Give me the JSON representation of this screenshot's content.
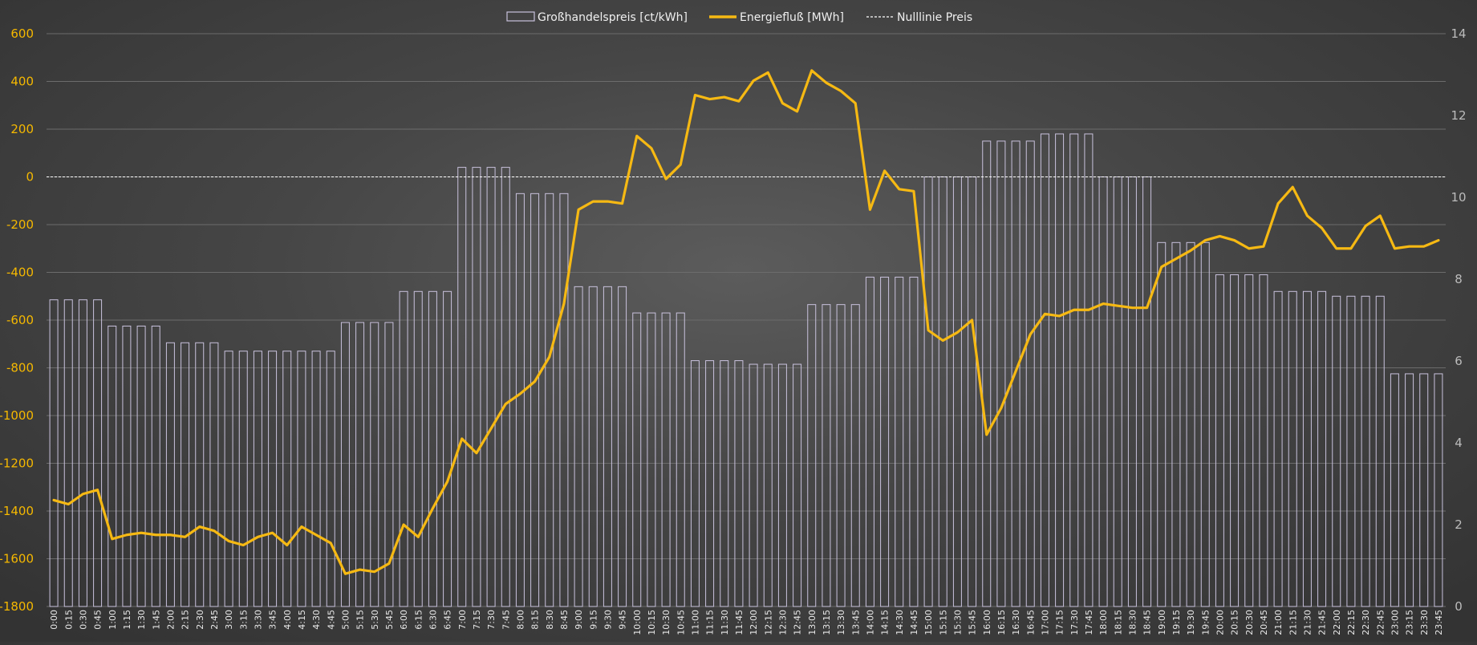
{
  "chart_data": {
    "type": "bar+line",
    "legend": {
      "position": "top-center",
      "items": [
        {
          "label": "Großhandelspreis [ct/kWh]",
          "kind": "bar"
        },
        {
          "label": "Energiefluß [MWh]",
          "kind": "line"
        },
        {
          "label": "Nulllinie Preis",
          "kind": "dashed"
        }
      ]
    },
    "categories": [
      "0:00",
      "0:15",
      "0:30",
      "0:45",
      "1:00",
      "1:15",
      "1:30",
      "1:45",
      "2:00",
      "2:15",
      "2:30",
      "2:45",
      "3:00",
      "3:15",
      "3:30",
      "3:45",
      "4:00",
      "4:15",
      "4:30",
      "4:45",
      "5:00",
      "5:15",
      "5:30",
      "5:45",
      "6:00",
      "6:15",
      "6:30",
      "6:45",
      "7:00",
      "7:15",
      "7:30",
      "7:45",
      "8:00",
      "8:15",
      "8:30",
      "8:45",
      "9:00",
      "9:15",
      "9:30",
      "9:45",
      "10:00",
      "10:15",
      "10:30",
      "10:45",
      "11:00",
      "11:15",
      "11:30",
      "11:45",
      "12:00",
      "12:15",
      "12:30",
      "12:45",
      "13:00",
      "13:15",
      "13:30",
      "13:45",
      "14:00",
      "14:15",
      "14:30",
      "14:45",
      "15:00",
      "15:15",
      "15:30",
      "15:45",
      "16:00",
      "16:15",
      "16:30",
      "16:45",
      "17:00",
      "17:15",
      "17:30",
      "17:45",
      "18:00",
      "18:15",
      "18:30",
      "18:45",
      "19:00",
      "19:15",
      "19:30",
      "19:45",
      "20:00",
      "20:15",
      "20:30",
      "20:45",
      "21:00",
      "21:15",
      "21:30",
      "21:45",
      "22:00",
      "22:15",
      "22:30",
      "22:45",
      "23:00",
      "23:15",
      "23:30",
      "23:45"
    ],
    "series": [
      {
        "name": "Großhandelspreis [ct/kWh]",
        "type": "bar",
        "axis": "left",
        "values": [
          -515,
          -515,
          -515,
          -515,
          -625,
          -625,
          -625,
          -625,
          -695,
          -695,
          -695,
          -695,
          -730,
          -730,
          -730,
          -730,
          -730,
          -730,
          -730,
          -730,
          -610,
          -610,
          -610,
          -610,
          -480,
          -480,
          -480,
          -480,
          40,
          40,
          40,
          40,
          -70,
          -70,
          -70,
          -70,
          -460,
          -460,
          -460,
          -460,
          -570,
          -570,
          -570,
          -570,
          -770,
          -770,
          -770,
          -770,
          -785,
          -785,
          -785,
          -785,
          -535,
          -535,
          -535,
          -535,
          -420,
          -420,
          -420,
          -420,
          0,
          0,
          0,
          0,
          150,
          150,
          150,
          150,
          180,
          180,
          180,
          180,
          0,
          0,
          0,
          0,
          -275,
          -275,
          -275,
          -275,
          -410,
          -410,
          -410,
          -410,
          -480,
          -480,
          -480,
          -480,
          -500,
          -500,
          -500,
          -500,
          -825,
          -825,
          -825,
          -825
        ]
      },
      {
        "name": "Energiefluß [MWh]",
        "type": "line",
        "axis": "right",
        "values": [
          2.6,
          2.5,
          2.75,
          2.85,
          1.65,
          1.75,
          1.8,
          1.75,
          1.75,
          1.7,
          1.95,
          1.85,
          1.6,
          1.5,
          1.7,
          1.8,
          1.5,
          1.95,
          1.75,
          1.55,
          0.8,
          0.9,
          0.85,
          1.05,
          2.0,
          1.7,
          2.4,
          3.05,
          4.1,
          3.75,
          4.35,
          4.95,
          5.2,
          5.5,
          6.1,
          7.4,
          9.7,
          9.9,
          9.9,
          9.85,
          11.5,
          11.2,
          10.45,
          10.8,
          12.5,
          12.4,
          12.45,
          12.35,
          12.85,
          13.05,
          12.3,
          12.1,
          13.1,
          12.8,
          12.6,
          12.3,
          9.7,
          10.65,
          10.2,
          10.15,
          6.75,
          6.5,
          6.7,
          7.0,
          4.2,
          4.85,
          5.75,
          6.65,
          7.15,
          7.1,
          7.25,
          7.25,
          7.4,
          7.35,
          7.3,
          7.3,
          8.3,
          8.5,
          8.7,
          8.95,
          9.05,
          8.95,
          8.75,
          8.8,
          9.85,
          10.25,
          9.55,
          9.25,
          8.75,
          8.75,
          9.3,
          9.55,
          8.75,
          8.8,
          8.8,
          8.95
        ]
      }
    ],
    "y_left": {
      "min": -1800,
      "max": 600,
      "ticks": [
        600,
        400,
        200,
        0,
        -200,
        -400,
        -600,
        -800,
        -1000,
        -1200,
        -1400,
        -1600,
        -1800
      ],
      "tick_labels": [
        "600",
        "400",
        "200",
        "0",
        "-200",
        "-400",
        "-600",
        "-800",
        "-1000",
        "-1200",
        "-1400",
        "-1600",
        "-1800"
      ]
    },
    "y_right": {
      "min": 0,
      "max": 14,
      "ticks": [
        14,
        12,
        10,
        8,
        6,
        4,
        2,
        0
      ],
      "tick_labels": [
        "14",
        "12",
        "10",
        "8",
        "6",
        "4",
        "2",
        "0"
      ]
    },
    "zero_line": 0,
    "grid": true,
    "colors": {
      "bar_stroke": "#c9c2dd",
      "line": "#f6b913",
      "zero_line": "#ffffff",
      "grid": "#6c6c6c",
      "left_axis_text": "#f5b800",
      "right_axis_text": "#bcbcbc",
      "x_axis_text": "#e8e8e8"
    }
  }
}
